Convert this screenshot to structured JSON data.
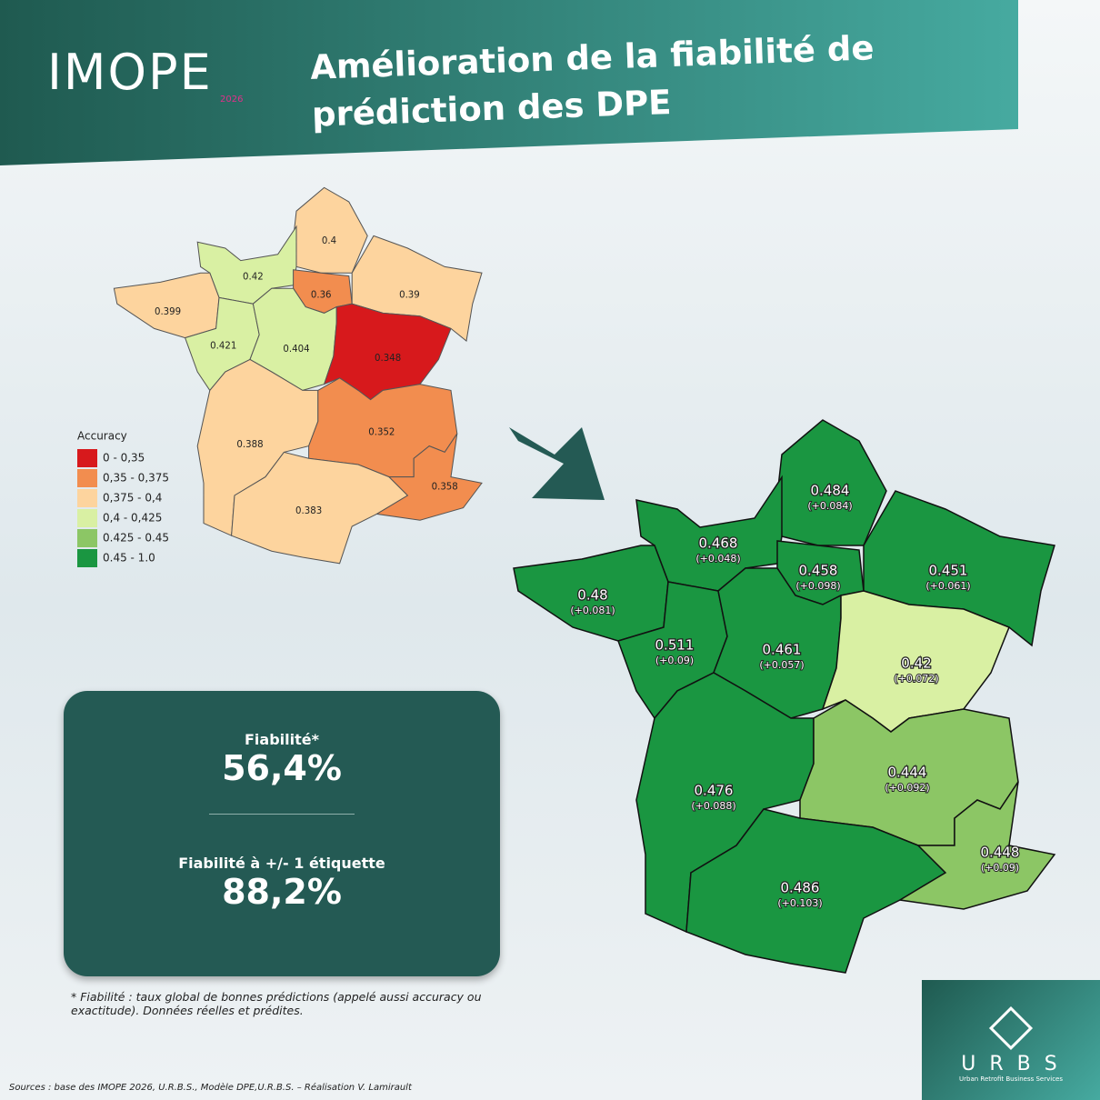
{
  "header": {
    "logo": "IMOPE",
    "logo_year": "2026",
    "title_line1": "Amélioration de la fiabilité de",
    "title_line2": "prédiction des DPE"
  },
  "legend": {
    "title": "Accuracy",
    "items": [
      {
        "label": "0 - 0,35",
        "color": "#d7191c"
      },
      {
        "label": "0,35 - 0,375",
        "color": "#f28d4f"
      },
      {
        "label": "0,375 - 0,4",
        "color": "#fdd49e"
      },
      {
        "label": "0,4 - 0,425",
        "color": "#d9f0a3"
      },
      {
        "label": "0.425 - 0.45",
        "color": "#8cc665"
      },
      {
        "label": "0.45 - 1.0",
        "color": "#1a9641"
      }
    ]
  },
  "before_map": {
    "regions": [
      {
        "label": "0.4",
        "color": "#fdd49e"
      },
      {
        "label": "0.42",
        "color": "#d9f0a3"
      },
      {
        "label": "0.36",
        "color": "#f28d4f"
      },
      {
        "label": "0.39",
        "color": "#fdd49e"
      },
      {
        "label": "0.399",
        "color": "#fdd49e"
      },
      {
        "label": "0.421",
        "color": "#d9f0a3"
      },
      {
        "label": "0.404",
        "color": "#d9f0a3"
      },
      {
        "label": "0.348",
        "color": "#d7191c"
      },
      {
        "label": "0.388",
        "color": "#fdd49e"
      },
      {
        "label": "0.352",
        "color": "#f28d4f"
      },
      {
        "label": "0.383",
        "color": "#fdd49e"
      },
      {
        "label": "0.358",
        "color": "#f28d4f"
      }
    ]
  },
  "after_map": {
    "regions": [
      {
        "label": "0.484",
        "delta": "(+0.084)",
        "color": "#1a9641"
      },
      {
        "label": "0.468",
        "delta": "(+0.048)",
        "color": "#1a9641"
      },
      {
        "label": "0.458",
        "delta": "(+0.098)",
        "color": "#1a9641"
      },
      {
        "label": "0.451",
        "delta": "(+0.061)",
        "color": "#1a9641"
      },
      {
        "label": "0.48",
        "delta": "(+0.081)",
        "color": "#1a9641"
      },
      {
        "label": "0.511",
        "delta": "(+0.09)",
        "color": "#1a9641"
      },
      {
        "label": "0.461",
        "delta": "(+0.057)",
        "color": "#1a9641"
      },
      {
        "label": "0.42",
        "delta": "(+0.072)",
        "color": "#d9f0a3"
      },
      {
        "label": "0.476",
        "delta": "(+0.088)",
        "color": "#1a9641"
      },
      {
        "label": "0.444",
        "delta": "(+0.092)",
        "color": "#8cc665"
      },
      {
        "label": "0.486",
        "delta": "(+0.103)",
        "color": "#1a9641"
      },
      {
        "label": "0.448",
        "delta": "(+0.09)",
        "color": "#8cc665"
      }
    ]
  },
  "stats": {
    "label1": "Fiabilité*",
    "value1": "56,4%",
    "label2": "Fiabilité à +/- 1 étiquette",
    "value2": "88,2%"
  },
  "footnote": "* Fiabilité : taux global de bonnes prédictions (appelé aussi accuracy ou exactitude). Données réelles et prédites.",
  "sources": "Sources : base des IMOPE 2026, U.R.B.S., Modèle DPE,U.R.B.S. – Réalisation V. Lamirault",
  "brand": {
    "name": "U R B S",
    "tagline": "Urban Retrofit Business Services"
  }
}
